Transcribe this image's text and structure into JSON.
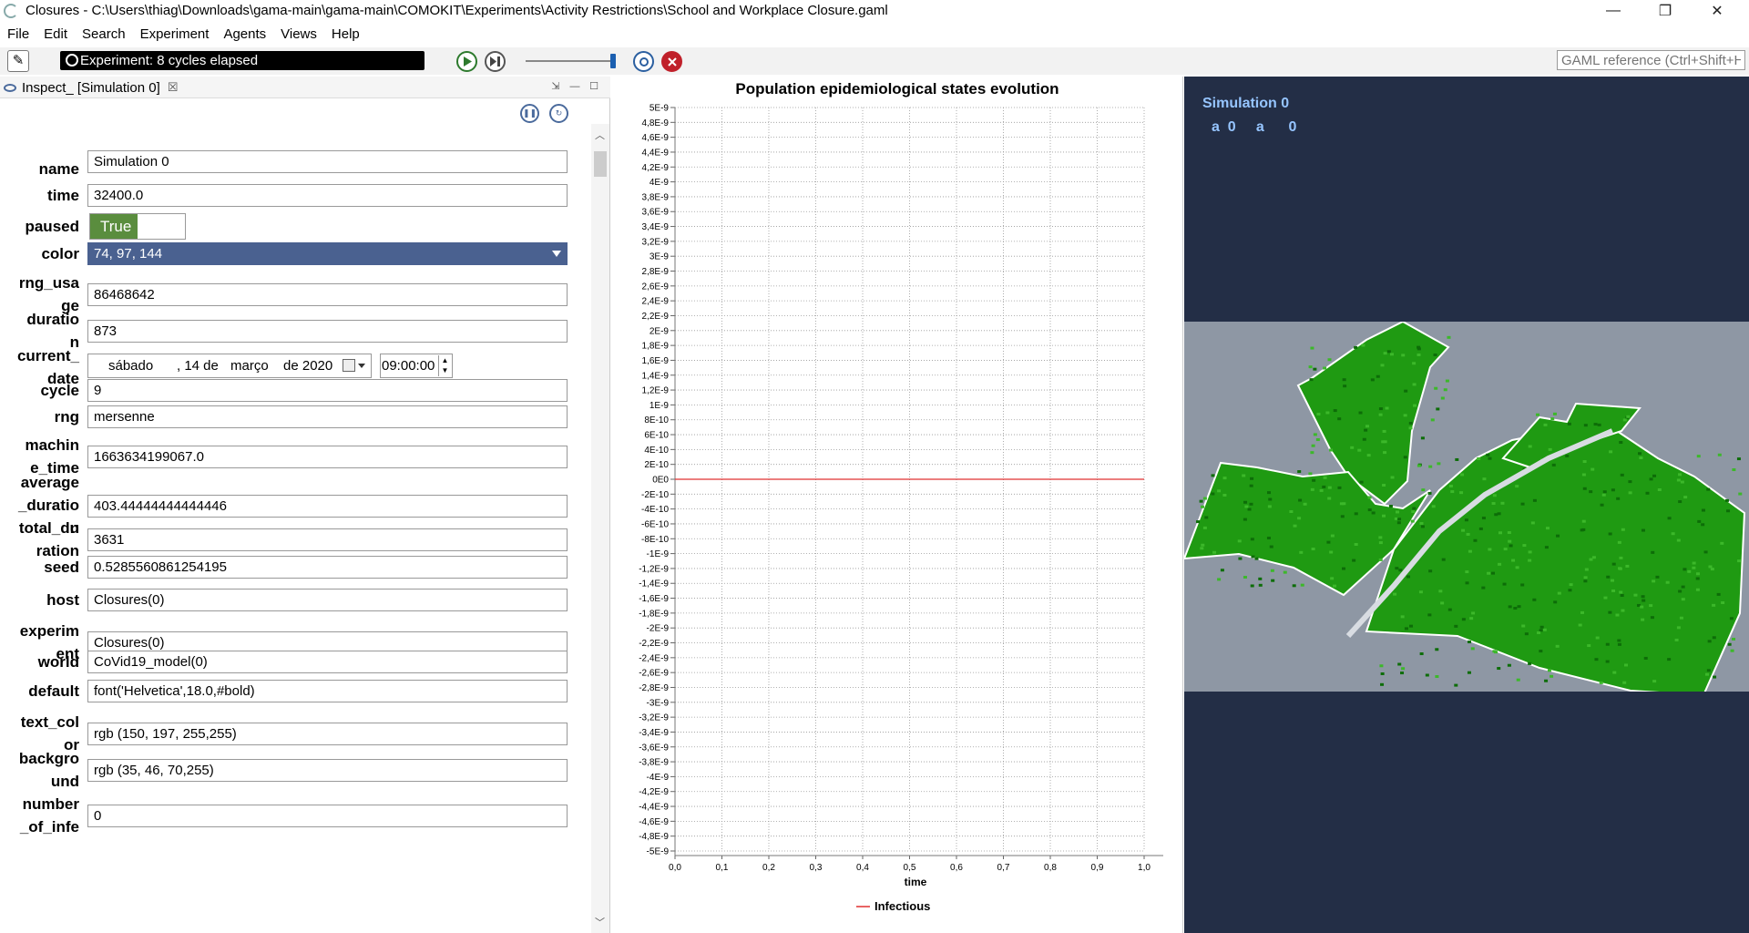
{
  "window": {
    "title": "Closures - C:\\Users\\thiag\\Downloads\\gama-main\\gama-main\\COMOKIT\\Experiments\\Activity Restrictions\\School and Workplace Closure.gaml",
    "controls": {
      "minimize": "—",
      "restore": "❐",
      "close": "✕"
    }
  },
  "menu": [
    "File",
    "Edit",
    "Search",
    "Experiment",
    "Agents",
    "Views",
    "Help"
  ],
  "toolbar": {
    "status": "Experiment: 8 cycles elapsed",
    "search_placeholder": "GAML reference (Ctrl+Shift+H)",
    "icons": [
      "edit-icon",
      "clock-icon",
      "play-icon",
      "step-icon",
      "reload-icon",
      "close-experiment-icon"
    ]
  },
  "inspector": {
    "tab_label": "Inspect_ [Simulation 0]",
    "tab_close": "☒",
    "rows": [
      {
        "label": "name",
        "value": "Simulation 0"
      },
      {
        "label": "time",
        "value": "32400.0"
      },
      {
        "label": "paused",
        "value": "True"
      },
      {
        "label": "color",
        "value": "74, 97, 144"
      },
      {
        "label": "rng_usa\nge",
        "value": "86468642"
      },
      {
        "label": "duratio\nn",
        "value": "873"
      },
      {
        "label": "current_\ndate",
        "value": ""
      },
      {
        "label": "cycle",
        "value": "9"
      },
      {
        "label": "rng",
        "value": "mersenne"
      },
      {
        "label": "machin\ne_time",
        "value": "1663634199067.0"
      },
      {
        "label": "average\n_duratio\nn",
        "value": "403.44444444444446"
      },
      {
        "label": "total_du\nration",
        "value": "3631"
      },
      {
        "label": "seed",
        "value": "0.5285560861254195"
      },
      {
        "label": "host",
        "value": "Closures(0)"
      },
      {
        "label": "experim\nent",
        "value": "Closures(0)"
      },
      {
        "label": "world",
        "value": "CoVid19_model(0)"
      },
      {
        "label": "default",
        "value": "font('Helvetica',18.0,#bold)"
      },
      {
        "label": "text_col\nor",
        "value": "rgb (150, 197, 255,255)"
      },
      {
        "label": "backgro\nund",
        "value": "rgb (35, 46, 70,255)"
      },
      {
        "label": "number\n_of_infe",
        "value": "0"
      }
    ],
    "date": {
      "weekday": "sábado",
      "day": ", 14 de",
      "month": "março",
      "year": "de 2020",
      "time": "09:00:00"
    },
    "colors": {
      "paused_on": "#5a8d3e",
      "color_field": "#4a6190"
    }
  },
  "chart_data": {
    "type": "line",
    "title": "Population epidemiological states evolution",
    "xlabel": "time",
    "ylabel": "",
    "xlim": [
      0.0,
      1.0
    ],
    "ylim": [
      -5e-09,
      5e-09
    ],
    "x_ticks": [
      "0,0",
      "0,1",
      "0,2",
      "0,3",
      "0,4",
      "0,5",
      "0,6",
      "0,7",
      "0,8",
      "0,9",
      "1,0"
    ],
    "y_ticks": [
      "5E-9",
      "4,8E-9",
      "4,6E-9",
      "4,4E-9",
      "4,2E-9",
      "4E-9",
      "3,8E-9",
      "3,6E-9",
      "3,4E-9",
      "3,2E-9",
      "3E-9",
      "2,8E-9",
      "2,6E-9",
      "2,4E-9",
      "2,2E-9",
      "2E-9",
      "1,8E-9",
      "1,6E-9",
      "1,4E-9",
      "1,2E-9",
      "1E-9",
      "8E-10",
      "6E-10",
      "4E-10",
      "2E-10",
      "0E0",
      "-2E-10",
      "-4E-10",
      "-6E-10",
      "-8E-10",
      "-1E-9",
      "-1,2E-9",
      "-1,4E-9",
      "-1,6E-9",
      "-1,8E-9",
      "-2E-9",
      "-2,2E-9",
      "-2,4E-9",
      "-2,6E-9",
      "-2,8E-9",
      "-3E-9",
      "-3,2E-9",
      "-3,4E-9",
      "-3,6E-9",
      "-3,8E-9",
      "-4E-9",
      "-4,2E-9",
      "-4,4E-9",
      "-4,6E-9",
      "-4,8E-9",
      "-5E-9"
    ],
    "grid": true,
    "legend": "bottom",
    "series": [
      {
        "name": "Infectious",
        "color": "#e03030",
        "x": [
          0.0,
          1.0
        ],
        "values": [
          0,
          0
        ]
      }
    ]
  },
  "map": {
    "simulation_label": "Simulation 0",
    "values_text": "a  0     a      0",
    "background": "#232e46",
    "land_color": "#8e97a4",
    "building_color": "#1f9a12"
  }
}
